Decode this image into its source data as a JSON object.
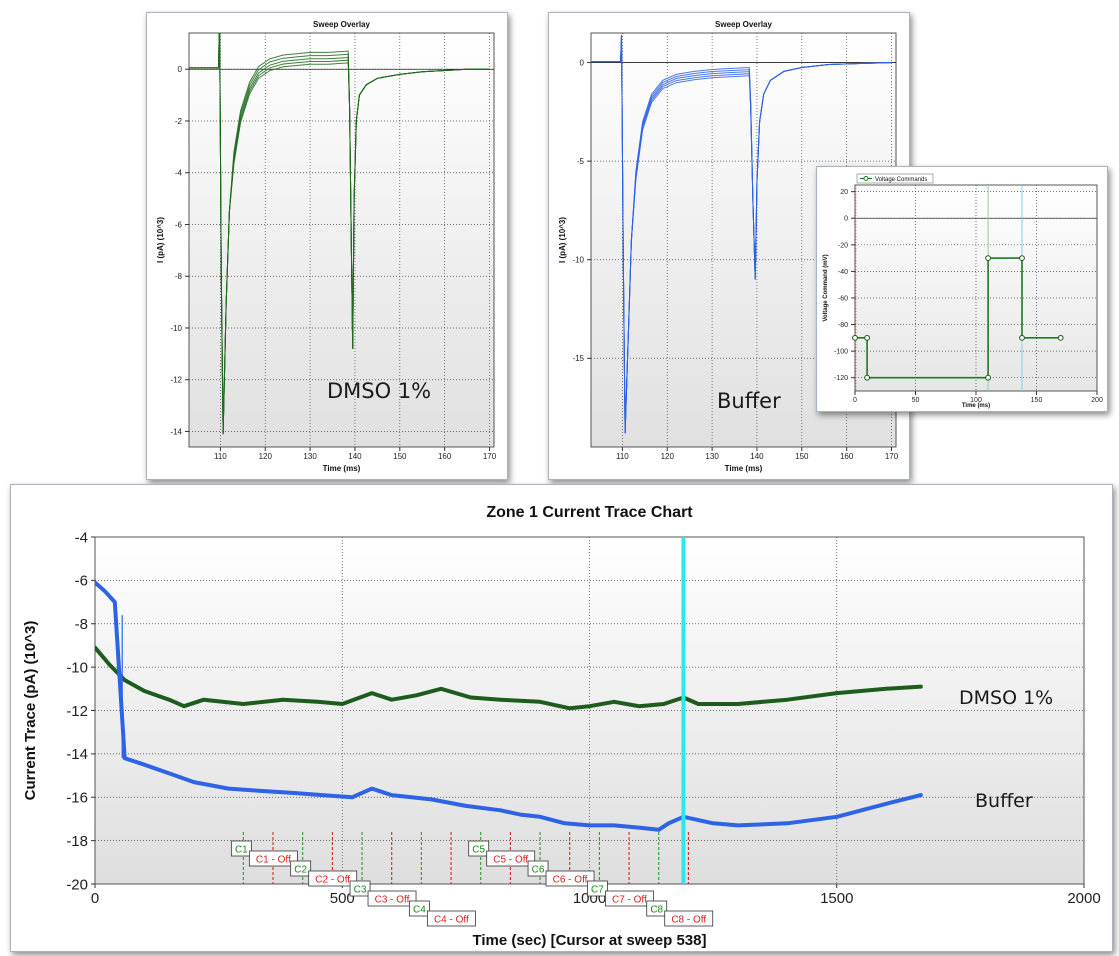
{
  "chart_data": [
    {
      "id": "dmso-sweep",
      "type": "line",
      "title": "Sweep Overlay",
      "xlabel": "Time (ms)",
      "ylabel": "I (pA) (10^3)",
      "xlim": [
        103,
        171
      ],
      "ylim": [
        -14.6,
        1.4
      ],
      "xticks": [
        110,
        120,
        130,
        140,
        150,
        160,
        170
      ],
      "yticks": [
        0,
        -2,
        -4,
        -6,
        -8,
        -10,
        -12,
        -14
      ],
      "grid": true,
      "annotation": "DMSO 1%",
      "color": "#1e6a1e",
      "sweeps": [
        0,
        0.35,
        0.7,
        1.0,
        1.3
      ],
      "series": {
        "x": [
          103,
          109.6,
          109.8,
          110.2,
          110.6,
          111.3,
          112,
          113,
          114.5,
          116.5,
          118.5,
          121,
          124,
          127,
          130,
          134,
          138.5,
          138.8,
          139.2,
          139.5,
          139.8,
          140.3,
          141,
          142.5,
          145,
          150,
          155,
          160,
          165,
          170
        ],
        "y": [
          0.05,
          0.05,
          2.2,
          -8,
          -14.1,
          -9,
          -5.5,
          -3.2,
          -1.6,
          -0.5,
          0.1,
          0.4,
          0.55,
          0.6,
          0.65,
          0.65,
          0.7,
          -1.5,
          -7,
          -10.8,
          -5,
          -2,
          -1,
          -0.6,
          -0.35,
          -0.2,
          -0.1,
          -0.05,
          0,
          0
        ]
      }
    },
    {
      "id": "buffer-sweep",
      "type": "line",
      "title": "Sweep Overlay",
      "xlabel": "Time (ms)",
      "ylabel": "I (pA) (10^3)",
      "xlim": [
        103,
        171
      ],
      "ylim": [
        -19.5,
        1.5
      ],
      "xticks": [
        110,
        120,
        130,
        140,
        150,
        160,
        170
      ],
      "yticks": [
        0,
        -5,
        -10,
        -15
      ],
      "grid": true,
      "annotation": "Buffer",
      "color": "#2e63e6",
      "sweeps": [
        0,
        0.3,
        0.6,
        0.9,
        1.2
      ],
      "series": {
        "x": [
          103,
          109.6,
          109.8,
          110.2,
          110.6,
          111.3,
          112,
          113,
          114.5,
          116.5,
          119,
          122,
          126,
          130,
          134,
          138.3,
          138.6,
          139.1,
          139.6,
          140,
          140.6,
          141.5,
          143,
          146,
          150,
          156,
          162,
          170
        ],
        "y": [
          0.05,
          0.05,
          1.4,
          -10,
          -18.8,
          -14,
          -9,
          -5.5,
          -3,
          -1.6,
          -0.9,
          -0.6,
          -0.45,
          -0.35,
          -0.3,
          -0.25,
          -2,
          -7,
          -11,
          -6,
          -3,
          -1.6,
          -0.9,
          -0.45,
          -0.25,
          -0.1,
          -0.05,
          0
        ]
      }
    },
    {
      "id": "voltage-protocol",
      "type": "line",
      "title": "",
      "legend": "Voltage Commands",
      "xlabel": "Time (ms)",
      "ylabel": "Voltage Command (mV)",
      "xlim": [
        0,
        200
      ],
      "ylim": [
        -130,
        25
      ],
      "xticks": [
        0,
        50,
        100,
        150,
        200
      ],
      "yticks": [
        20,
        0,
        -20,
        -40,
        -60,
        -80,
        -100,
        -120
      ],
      "grid": true,
      "color": "#1e7a1e",
      "cursors": [
        {
          "x": 110,
          "color": "#8fd08f"
        },
        {
          "x": 138,
          "color": "#8fc8e8"
        }
      ],
      "series": {
        "x": [
          0,
          10,
          10,
          110,
          110,
          138,
          138,
          170
        ],
        "y": [
          -90,
          -90,
          -120,
          -120,
          -30,
          -30,
          -90,
          -90
        ]
      }
    },
    {
      "id": "zone-trace",
      "type": "line",
      "title": "Zone 1 Current Trace Chart",
      "xlabel": "Time (sec) [Cursor at sweep 538]",
      "ylabel": "Current Trace (pA) (10^3)",
      "xlim": [
        0,
        2000
      ],
      "ylim": [
        -20,
        -4
      ],
      "xticks": [
        0,
        500,
        1000,
        1500,
        2000
      ],
      "yticks": [
        -4,
        -6,
        -8,
        -10,
        -12,
        -14,
        -16,
        -18,
        -20
      ],
      "grid": true,
      "cursor_x": 1190,
      "series": [
        {
          "name": "DMSO 1%",
          "color": "#1e5c1e",
          "x": [
            0,
            30,
            60,
            100,
            150,
            180,
            220,
            300,
            380,
            450,
            500,
            560,
            600,
            650,
            700,
            760,
            820,
            900,
            960,
            1000,
            1050,
            1100,
            1150,
            1190,
            1220,
            1300,
            1400,
            1500,
            1600,
            1670
          ],
          "y": [
            -9.1,
            -9.9,
            -10.6,
            -11.1,
            -11.5,
            -11.8,
            -11.5,
            -11.7,
            -11.5,
            -11.6,
            -11.7,
            -11.2,
            -11.5,
            -11.3,
            -11.0,
            -11.4,
            -11.5,
            -11.6,
            -11.9,
            -11.8,
            -11.6,
            -11.8,
            -11.7,
            -11.4,
            -11.7,
            -11.7,
            -11.5,
            -11.2,
            -11.0,
            -10.9
          ]
        },
        {
          "name": "Buffer",
          "color": "#2e63e6",
          "x": [
            0,
            20,
            40,
            60,
            100,
            150,
            200,
            270,
            330,
            400,
            460,
            520,
            560,
            600,
            680,
            750,
            820,
            860,
            900,
            950,
            1000,
            1050,
            1100,
            1140,
            1160,
            1190,
            1250,
            1300,
            1400,
            1500,
            1600,
            1670
          ],
          "y": [
            -6.1,
            -6.5,
            -7.0,
            -14.2,
            -14.5,
            -14.9,
            -15.3,
            -15.6,
            -15.7,
            -15.8,
            -15.9,
            -16.0,
            -15.6,
            -15.9,
            -16.1,
            -16.4,
            -16.6,
            -16.8,
            -16.9,
            -17.2,
            -17.3,
            -17.3,
            -17.4,
            -17.5,
            -17.2,
            -16.9,
            -17.2,
            -17.3,
            -17.2,
            -16.9,
            -16.3,
            -15.9
          ]
        }
      ],
      "events": [
        {
          "on": "C1",
          "off": "C1 - Off",
          "on_t": 300,
          "off_t": 360
        },
        {
          "on": "C2",
          "off": "C2 - Off",
          "on_t": 420,
          "off_t": 480
        },
        {
          "on": "C3",
          "off": "C3 - Off",
          "on_t": 540,
          "off_t": 600
        },
        {
          "on": "C4",
          "off": "C4 - Off",
          "on_t": 660,
          "off_t": 720
        },
        {
          "on": "C5",
          "off": "C5 - Off",
          "on_t": 780,
          "off_t": 840
        },
        {
          "on": "C6",
          "off": "C6 - Off",
          "on_t": 900,
          "off_t": 960
        },
        {
          "on": "C7",
          "off": "C7 - Off",
          "on_t": 1020,
          "off_t": 1080
        },
        {
          "on": "C8",
          "off": "C8 - Off",
          "on_t": 1140,
          "off_t": 1200
        }
      ]
    }
  ]
}
